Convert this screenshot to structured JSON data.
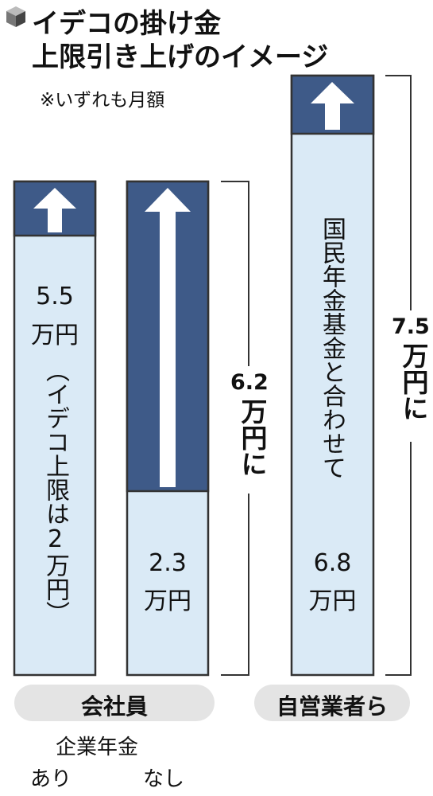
{
  "header": {
    "title_lines": [
      "イデコの掛け金",
      "上限引き上げのイメージ"
    ],
    "note": "※いずれも月額"
  },
  "columns": [
    {
      "amount": "5.5",
      "unit": "万円",
      "vertical_note": "（イデコ上限は2万円）"
    },
    {
      "amount": "2.3",
      "unit": "万円"
    },
    {
      "vertical_note": "国民年金基金と合わせて",
      "amount": "6.8",
      "unit": "万円"
    }
  ],
  "brackets": [
    {
      "amount": "6.2",
      "unit": "万円に"
    },
    {
      "amount": "7.5",
      "unit": "万円に"
    }
  ],
  "groups": [
    "会社員",
    "自営業者ら"
  ],
  "sub_label": {
    "title": "企業年金",
    "left": "あり",
    "right": "なし"
  }
}
